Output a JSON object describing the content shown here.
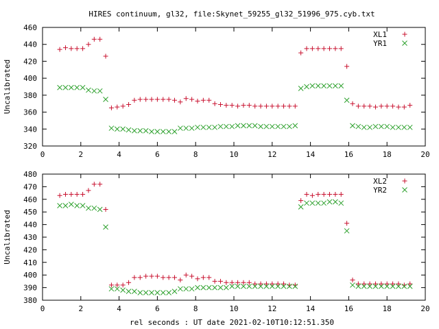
{
  "title": "HIRES continuum, gl32, file:Skynet_59255_gl32_51996_975.cyb.txt",
  "xlabel": "rel seconds : UT date 2021-02-10T10:12:51.350",
  "colors": {
    "red": "#c8102e",
    "green": "#2ca02c",
    "axis": "#000000",
    "background": "#ffffff"
  },
  "chart_data": [
    {
      "type": "scatter",
      "ylabel": "Uncalibrated",
      "xlim": [
        0,
        20
      ],
      "ylim": [
        320,
        460
      ],
      "xticks": [
        0,
        2,
        4,
        6,
        8,
        10,
        12,
        14,
        16,
        18,
        20
      ],
      "yticks": [
        320,
        340,
        360,
        380,
        400,
        420,
        440,
        460
      ],
      "legend_position": "top-right",
      "series": [
        {
          "name": "XL1",
          "marker": "plus",
          "color": "#c8102e",
          "x": [
            0.9,
            1.2,
            1.5,
            1.8,
            2.1,
            2.4,
            2.7,
            3.0,
            3.3,
            3.6,
            3.9,
            4.2,
            4.5,
            4.8,
            5.1,
            5.4,
            5.7,
            6.0,
            6.3,
            6.6,
            6.9,
            7.2,
            7.5,
            7.8,
            8.1,
            8.4,
            8.7,
            9.0,
            9.3,
            9.6,
            9.9,
            10.2,
            10.5,
            10.8,
            11.1,
            11.4,
            11.7,
            12.0,
            12.3,
            12.6,
            12.9,
            13.2,
            13.5,
            13.8,
            14.1,
            14.4,
            14.7,
            15.0,
            15.3,
            15.6,
            15.9,
            16.2,
            16.5,
            16.8,
            17.1,
            17.4,
            17.7,
            18.0,
            18.3,
            18.6,
            18.9,
            19.2
          ],
          "y": [
            434,
            436,
            435,
            435,
            435,
            440,
            446,
            446,
            426,
            365,
            366,
            367,
            369,
            374,
            375,
            375,
            375,
            375,
            375,
            375,
            374,
            372,
            376,
            375,
            373,
            374,
            374,
            370,
            369,
            368,
            368,
            367,
            368,
            368,
            367,
            367,
            367,
            367,
            367,
            367,
            367,
            367,
            430,
            435,
            435,
            435,
            435,
            435,
            435,
            435,
            414,
            370,
            367,
            367,
            367,
            366,
            367,
            367,
            367,
            366,
            366,
            368
          ]
        },
        {
          "name": "YR1",
          "marker": "cross",
          "color": "#2ca02c",
          "x": [
            0.9,
            1.2,
            1.5,
            1.8,
            2.1,
            2.4,
            2.7,
            3.0,
            3.3,
            3.6,
            3.9,
            4.2,
            4.5,
            4.8,
            5.1,
            5.4,
            5.7,
            6.0,
            6.3,
            6.6,
            6.9,
            7.2,
            7.5,
            7.8,
            8.1,
            8.4,
            8.7,
            9.0,
            9.3,
            9.6,
            9.9,
            10.2,
            10.5,
            10.8,
            11.1,
            11.4,
            11.7,
            12.0,
            12.3,
            12.6,
            12.9,
            13.2,
            13.5,
            13.8,
            14.1,
            14.4,
            14.7,
            15.0,
            15.3,
            15.6,
            15.9,
            16.2,
            16.5,
            16.8,
            17.1,
            17.4,
            17.7,
            18.0,
            18.3,
            18.6,
            18.9,
            19.2
          ],
          "y": [
            389,
            389,
            389,
            389,
            389,
            386,
            385,
            385,
            375,
            341,
            340,
            340,
            339,
            338,
            338,
            338,
            337,
            337,
            337,
            337,
            337,
            341,
            341,
            341,
            342,
            342,
            342,
            342,
            343,
            343,
            343,
            344,
            344,
            344,
            344,
            343,
            343,
            343,
            343,
            343,
            343,
            344,
            388,
            390,
            391,
            391,
            391,
            391,
            391,
            391,
            374,
            344,
            343,
            342,
            342,
            343,
            343,
            343,
            342,
            342,
            342,
            342
          ]
        }
      ]
    },
    {
      "type": "scatter",
      "ylabel": "Uncalibrated",
      "xlim": [
        0,
        20
      ],
      "ylim": [
        380,
        480
      ],
      "xticks": [
        0,
        2,
        4,
        6,
        8,
        10,
        12,
        14,
        16,
        18,
        20
      ],
      "yticks": [
        380,
        390,
        400,
        410,
        420,
        430,
        440,
        450,
        460,
        470,
        480
      ],
      "legend_position": "top-right",
      "series": [
        {
          "name": "XL2",
          "marker": "plus",
          "color": "#c8102e",
          "x": [
            0.9,
            1.2,
            1.5,
            1.8,
            2.1,
            2.4,
            2.7,
            3.0,
            3.3,
            3.6,
            3.9,
            4.2,
            4.5,
            4.8,
            5.1,
            5.4,
            5.7,
            6.0,
            6.3,
            6.6,
            6.9,
            7.2,
            7.5,
            7.8,
            8.1,
            8.4,
            8.7,
            9.0,
            9.3,
            9.6,
            9.9,
            10.2,
            10.5,
            10.8,
            11.1,
            11.4,
            11.7,
            12.0,
            12.3,
            12.6,
            12.9,
            13.2,
            13.5,
            13.8,
            14.1,
            14.4,
            14.7,
            15.0,
            15.3,
            15.6,
            15.9,
            16.2,
            16.5,
            16.8,
            17.1,
            17.4,
            17.7,
            18.0,
            18.3,
            18.6,
            18.9,
            19.2
          ],
          "y": [
            463,
            464,
            464,
            464,
            464,
            467,
            472,
            472,
            452,
            392,
            392,
            392,
            394,
            398,
            398,
            399,
            399,
            399,
            398,
            398,
            398,
            396,
            400,
            399,
            397,
            398,
            398,
            395,
            395,
            394,
            394,
            394,
            394,
            394,
            393,
            393,
            393,
            393,
            393,
            393,
            392,
            392,
            459,
            464,
            463,
            464,
            464,
            464,
            464,
            464,
            441,
            396,
            393,
            393,
            393,
            393,
            393,
            393,
            393,
            393,
            392,
            393
          ]
        },
        {
          "name": "YR2",
          "marker": "cross",
          "color": "#2ca02c",
          "x": [
            0.9,
            1.2,
            1.5,
            1.8,
            2.1,
            2.4,
            2.7,
            3.0,
            3.3,
            3.6,
            3.9,
            4.2,
            4.5,
            4.8,
            5.1,
            5.4,
            5.7,
            6.0,
            6.3,
            6.6,
            6.9,
            7.2,
            7.5,
            7.8,
            8.1,
            8.4,
            8.7,
            9.0,
            9.3,
            9.6,
            9.9,
            10.2,
            10.5,
            10.8,
            11.1,
            11.4,
            11.7,
            12.0,
            12.3,
            12.6,
            12.9,
            13.2,
            13.5,
            13.8,
            14.1,
            14.4,
            14.7,
            15.0,
            15.3,
            15.6,
            15.9,
            16.2,
            16.5,
            16.8,
            17.1,
            17.4,
            17.7,
            18.0,
            18.3,
            18.6,
            18.9,
            19.2
          ],
          "y": [
            455,
            455,
            456,
            455,
            455,
            453,
            453,
            452,
            438,
            389,
            389,
            388,
            387,
            387,
            386,
            386,
            386,
            386,
            386,
            386,
            387,
            389,
            389,
            389,
            390,
            390,
            390,
            390,
            390,
            390,
            391,
            391,
            391,
            391,
            391,
            391,
            391,
            391,
            391,
            391,
            391,
            391,
            454,
            457,
            457,
            457,
            457,
            458,
            458,
            457,
            435,
            392,
            391,
            391,
            391,
            391,
            391,
            391,
            391,
            391,
            391,
            391
          ]
        }
      ]
    }
  ]
}
